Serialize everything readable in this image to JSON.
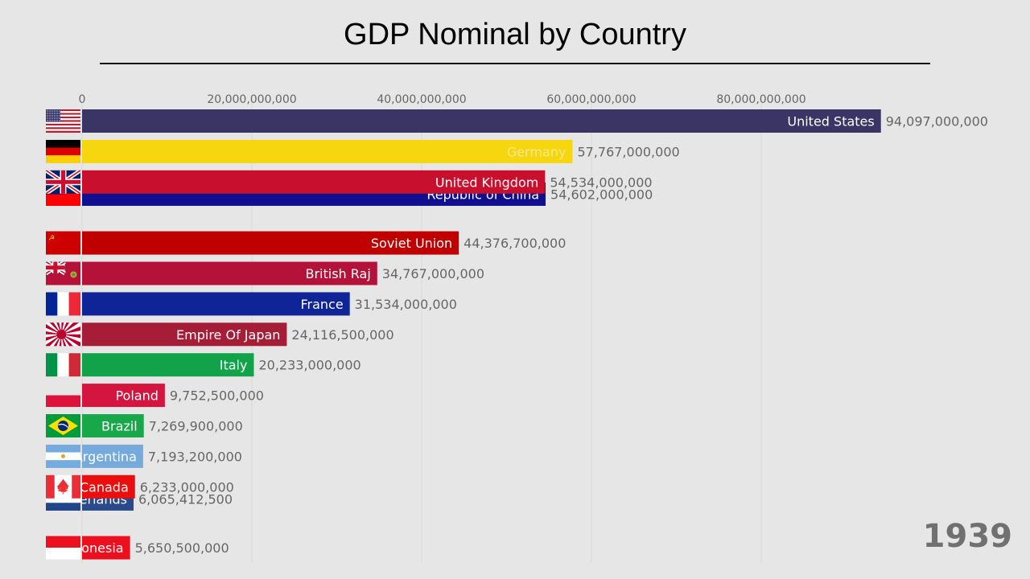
{
  "chart_data": {
    "type": "bar",
    "orientation": "horizontal",
    "title": "GDP Nominal by Country",
    "year": "1939",
    "xlabel": "",
    "ylabel": "",
    "xlim": [
      0,
      94097000000
    ],
    "xticks": [
      0,
      20000000000,
      40000000000,
      60000000000,
      80000000000
    ],
    "xtick_labels": [
      "0",
      "20,000,000,000",
      "40,000,000,000",
      "60,000,000,000",
      "80,000,000,000"
    ],
    "grid": true,
    "legend": "none",
    "series": [
      {
        "name": "United States",
        "value": 94097000000,
        "value_label": "94,097,000,000",
        "color": "#3b3566",
        "label_color": "#ffffff",
        "flag": "us-flag",
        "rank": 1
      },
      {
        "name": "Germany",
        "value": 57767000000,
        "value_label": "57,767,000,000",
        "color": "#f5d60f",
        "label_color": "#f8e88a",
        "flag": "germany-flag",
        "rank": 2
      },
      {
        "name": "Republic of China",
        "value": 54602000000,
        "value_label": "54,602,000,000",
        "color": "#0f0f8f",
        "label_color": "#ffffff",
        "flag": "roc-flag",
        "rank": 3.4
      },
      {
        "name": "United Kingdom",
        "value": 54534000000,
        "value_label": "54,534,000,000",
        "color": "#c8102e",
        "label_color": "#ffffff",
        "flag": "uk-flag",
        "rank": 3
      },
      {
        "name": "Soviet Union",
        "value": 44376700000,
        "value_label": "44,376,700,000",
        "color": "#c00000",
        "label_color": "#ffffff",
        "flag": "ussr-flag",
        "rank": 5
      },
      {
        "name": "British Raj",
        "value": 34767000000,
        "value_label": "34,767,000,000",
        "color": "#b5123a",
        "label_color": "#ffffff",
        "flag": "british-raj-flag",
        "rank": 6
      },
      {
        "name": "France",
        "value": 31534000000,
        "value_label": "31,534,000,000",
        "color": "#0f2496",
        "label_color": "#ffffff",
        "flag": "france-flag",
        "rank": 7
      },
      {
        "name": "Empire Of Japan",
        "value": 24116500000,
        "value_label": "24,116,500,000",
        "color": "#a61d38",
        "label_color": "#ffffff",
        "flag": "japan-rising-sun-flag",
        "rank": 8
      },
      {
        "name": "Italy",
        "value": 20233000000,
        "value_label": "20,233,000,000",
        "color": "#12a24a",
        "label_color": "#ffffff",
        "flag": "italy-flag",
        "rank": 9
      },
      {
        "name": "Poland",
        "value": 9752500000,
        "value_label": "9,752,500,000",
        "color": "#d3153f",
        "label_color": "#ffffff",
        "flag": "poland-flag",
        "rank": 10
      },
      {
        "name": "Brazil",
        "value": 7269900000,
        "value_label": "7,269,900,000",
        "color": "#18a84a",
        "label_color": "#ffffff",
        "flag": "brazil-flag",
        "rank": 11
      },
      {
        "name": "Argentina",
        "value": 7193200000,
        "value_label": "7,193,200,000",
        "color": "#75aadb",
        "label_color": "#ffffff",
        "flag": "argentina-flag",
        "rank": 12
      },
      {
        "name": "Netherlands",
        "value": 6065412500,
        "value_label": "6,065,412,500",
        "color": "#2a4a8c",
        "label_color": "#ffffff",
        "flag": "netherlands-flag",
        "rank": 13.4
      },
      {
        "name": "Canada",
        "value": 6233000000,
        "value_label": "6,233,000,000",
        "color": "#eb0e0e",
        "label_color": "#ffffff",
        "flag": "canada-flag",
        "rank": 13
      },
      {
        "name": "Indonesia",
        "value": 5650500000,
        "value_label": "5,650,500,000",
        "color": "#ec0f1e",
        "label_color": "#ffffff",
        "flag": "indonesia-flag",
        "rank": 15
      }
    ]
  }
}
